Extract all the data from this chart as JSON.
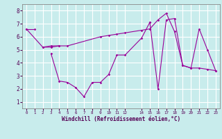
{
  "xlabel": "Windchill (Refroidissement éolien,°C)",
  "bg_color": "#c8ecec",
  "grid_color": "#ffffff",
  "line_color": "#990099",
  "xlim": [
    -0.5,
    23.5
  ],
  "ylim": [
    0.5,
    8.5
  ],
  "xtick_vals": [
    0,
    1,
    2,
    3,
    4,
    5,
    6,
    7,
    8,
    9,
    10,
    11,
    12,
    14,
    15,
    16,
    17,
    18,
    19,
    20,
    21,
    22,
    23
  ],
  "ytick_vals": [
    1,
    2,
    3,
    4,
    5,
    6,
    7,
    8
  ],
  "series": [
    {
      "x": [
        0,
        1
      ],
      "y": [
        6.6,
        6.6
      ]
    },
    {
      "x": [
        2,
        3,
        4
      ],
      "y": [
        5.2,
        5.2,
        5.3
      ]
    },
    {
      "x": [
        3,
        4,
        5,
        6,
        7,
        8,
        9,
        10,
        11,
        12,
        14,
        15
      ],
      "y": [
        4.7,
        2.6,
        2.5,
        2.1,
        1.4,
        2.5,
        2.5,
        3.1,
        4.6,
        4.6,
        5.9,
        7.1
      ]
    },
    {
      "x": [
        0,
        2,
        3,
        4,
        5,
        9,
        10,
        11,
        12,
        14,
        15,
        16,
        17,
        18,
        19,
        20,
        21,
        22,
        23
      ],
      "y": [
        6.6,
        5.2,
        5.3,
        5.3,
        5.3,
        6.0,
        6.1,
        6.2,
        6.3,
        6.5,
        6.6,
        7.3,
        7.8,
        6.4,
        3.8,
        3.6,
        3.6,
        3.5,
        3.4
      ]
    },
    {
      "x": [
        15,
        16,
        17,
        18,
        19,
        20,
        21,
        22,
        23
      ],
      "y": [
        7.1,
        2.0,
        7.3,
        7.4,
        3.8,
        3.6,
        6.6,
        5.0,
        3.4
      ]
    }
  ]
}
